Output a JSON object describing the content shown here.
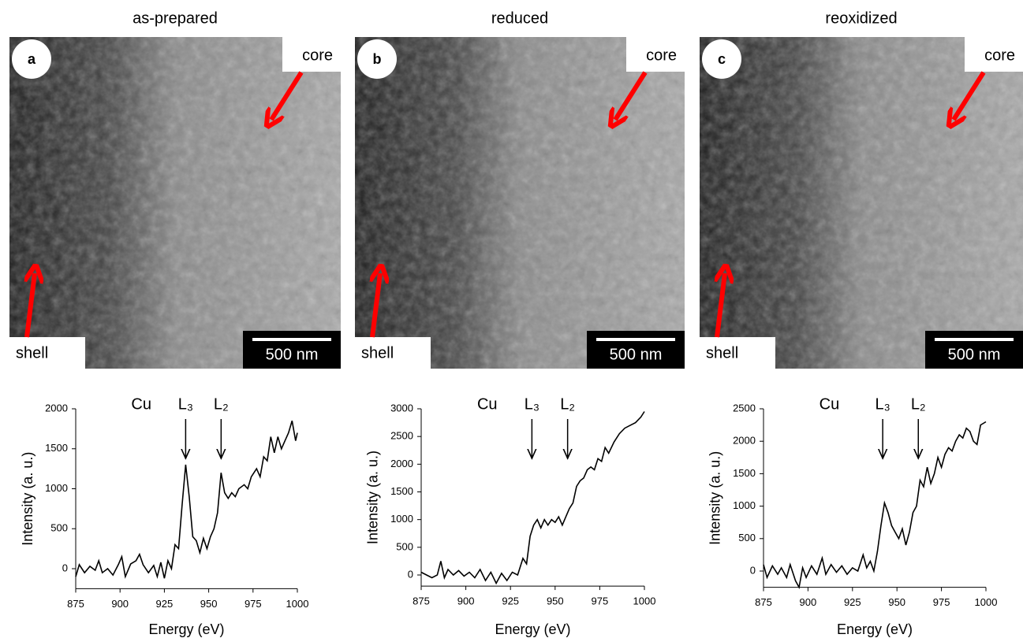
{
  "panels": [
    {
      "title": "as-prepared",
      "letter": "a",
      "core": "core",
      "shell": "shell",
      "scale_bar": "500 nm"
    },
    {
      "title": "reduced",
      "letter": "b",
      "core": "core",
      "shell": "shell",
      "scale_bar": "500 nm"
    },
    {
      "title": "reoxidized",
      "letter": "c",
      "core": "core",
      "shell": "shell",
      "scale_bar": "500 nm"
    }
  ],
  "chart_data": [
    {
      "type": "line",
      "xlabel": "Energy (eV)",
      "ylabel": "Intensity (a. u.)",
      "element": "Cu",
      "annotations": [
        {
          "text": "L₃",
          "x": 937
        },
        {
          "text": "L₂",
          "x": 957
        }
      ],
      "xlim": [
        875,
        1000
      ],
      "xticks": [
        875,
        900,
        925,
        950,
        975,
        1000
      ],
      "ylim": [
        -250,
        2000
      ],
      "yticks": [
        0,
        500,
        1000,
        1500,
        2000
      ],
      "series": [
        {
          "color": "#000000",
          "x": [
            875,
            877,
            880,
            883,
            886,
            888,
            890,
            893,
            896,
            899,
            901,
            903,
            906,
            909,
            911,
            913,
            916,
            919,
            921,
            923,
            925,
            927,
            929,
            931,
            933,
            935,
            937,
            939,
            941,
            943,
            945,
            947,
            949,
            951,
            953,
            955,
            957,
            959,
            961,
            963,
            965,
            967,
            970,
            972,
            974,
            977,
            979,
            981,
            983,
            985,
            987,
            989,
            991,
            993,
            995,
            997,
            999,
            1000
          ],
          "values": [
            -100,
            50,
            -50,
            30,
            -20,
            100,
            -50,
            0,
            -80,
            50,
            150,
            -100,
            60,
            100,
            180,
            50,
            -50,
            40,
            -100,
            80,
            -120,
            100,
            0,
            300,
            250,
            800,
            1300,
            900,
            400,
            350,
            200,
            380,
            250,
            400,
            500,
            700,
            1200,
            950,
            880,
            950,
            900,
            1000,
            1050,
            1000,
            1150,
            1250,
            1150,
            1400,
            1350,
            1650,
            1450,
            1650,
            1500,
            1600,
            1700,
            1850,
            1600,
            1700
          ]
        }
      ]
    },
    {
      "type": "line",
      "xlabel": "Energy (eV)",
      "ylabel": "Intensity (a. u.)",
      "element": "Cu",
      "annotations": [
        {
          "text": "L₃",
          "x": 937
        },
        {
          "text": "L₂",
          "x": 957
        }
      ],
      "xlim": [
        875,
        1000
      ],
      "xticks": [
        875,
        900,
        925,
        950,
        975,
        1000
      ],
      "ylim": [
        -200,
        3000
      ],
      "yticks": [
        0,
        500,
        1000,
        1500,
        2000,
        2500,
        3000
      ],
      "series": [
        {
          "color": "#000000",
          "x": [
            875,
            878,
            881,
            884,
            886,
            888,
            890,
            893,
            896,
            899,
            902,
            905,
            908,
            911,
            914,
            917,
            920,
            923,
            926,
            929,
            932,
            934,
            936,
            938,
            940,
            942,
            944,
            946,
            948,
            950,
            952,
            954,
            956,
            958,
            960,
            962,
            964,
            966,
            968,
            970,
            972,
            974,
            976,
            978,
            980,
            983,
            986,
            989,
            992,
            995,
            998,
            1000
          ],
          "values": [
            50,
            0,
            -50,
            0,
            250,
            -50,
            100,
            0,
            80,
            -20,
            50,
            -50,
            100,
            -100,
            50,
            -150,
            30,
            -100,
            50,
            0,
            300,
            200,
            700,
            900,
            1000,
            850,
            1000,
            900,
            1000,
            950,
            1050,
            900,
            1050,
            1200,
            1300,
            1600,
            1700,
            1750,
            1900,
            1950,
            1900,
            2100,
            2050,
            2300,
            2200,
            2400,
            2550,
            2650,
            2700,
            2750,
            2850,
            2950
          ]
        }
      ]
    },
    {
      "type": "line",
      "xlabel": "Energy (eV)",
      "ylabel": "Intensity (a. u.)",
      "element": "Cu",
      "annotations": [
        {
          "text": "L₃",
          "x": 942
        },
        {
          "text": "L₂",
          "x": 962
        }
      ],
      "xlim": [
        875,
        1000
      ],
      "xticks": [
        875,
        900,
        925,
        950,
        975,
        1000
      ],
      "ylim": [
        -250,
        2500
      ],
      "yticks": [
        0,
        500,
        1000,
        1500,
        2000,
        2500
      ],
      "series": [
        {
          "color": "#000000",
          "x": [
            875,
            877,
            880,
            883,
            885,
            888,
            890,
            893,
            895,
            897,
            899,
            902,
            905,
            908,
            910,
            913,
            916,
            919,
            922,
            925,
            928,
            931,
            933,
            935,
            937,
            939,
            941,
            943,
            945,
            947,
            949,
            951,
            953,
            955,
            957,
            959,
            961,
            963,
            965,
            967,
            969,
            971,
            973,
            975,
            977,
            979,
            981,
            983,
            985,
            987,
            989,
            991,
            993,
            995,
            997,
            1000
          ],
          "values": [
            100,
            -100,
            80,
            -50,
            50,
            -100,
            100,
            -150,
            -250,
            50,
            -100,
            80,
            -50,
            200,
            -50,
            100,
            -20,
            80,
            -50,
            50,
            0,
            250,
            50,
            150,
            0,
            300,
            700,
            1050,
            900,
            700,
            600,
            500,
            650,
            400,
            600,
            900,
            1000,
            1400,
            1300,
            1600,
            1350,
            1500,
            1750,
            1600,
            1800,
            1900,
            1850,
            2000,
            2100,
            2050,
            2200,
            2150,
            2000,
            1950,
            2250,
            2300
          ]
        }
      ]
    }
  ]
}
